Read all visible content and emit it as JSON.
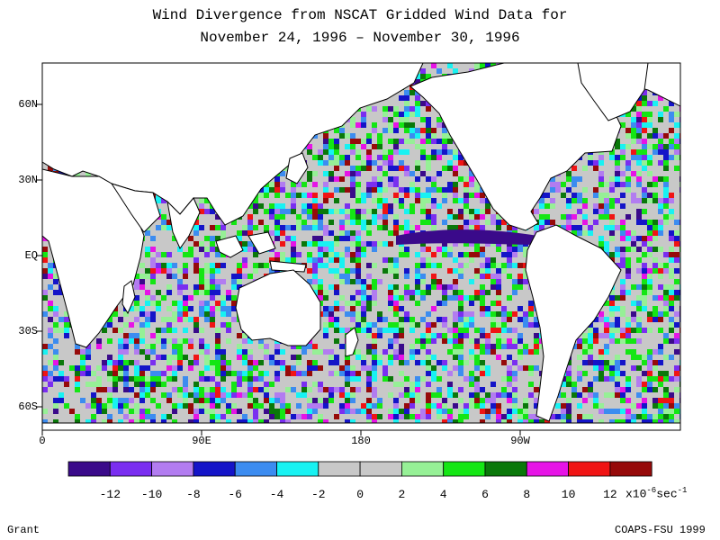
{
  "title": {
    "line1": "Wind Divergence from NSCAT Gridded Wind Data for",
    "line2": "November 24, 1996 – November 30, 1996"
  },
  "axes": {
    "y_labels": [
      "60N",
      "30N",
      "EQ",
      "30S",
      "60S"
    ],
    "x_labels": [
      "0",
      "90E",
      "180",
      "90W"
    ]
  },
  "colorbar": {
    "colors": [
      "#3a0a8a",
      "#7a2ef0",
      "#b27cf0",
      "#1414c8",
      "#3c8cf0",
      "#18f2f2",
      "#c8c8c8",
      "#c8c8c8",
      "#96f096",
      "#14e614",
      "#0a780a",
      "#e614e6",
      "#f01414",
      "#960a0a"
    ],
    "tick_labels": [
      "-12",
      "-10",
      "-8",
      "-6",
      "-4",
      "-2",
      "0",
      "2",
      "4",
      "6",
      "8",
      "10",
      "12"
    ],
    "unit_prefix": "x10",
    "unit_exp": "-6",
    "unit_mid": "sec",
    "unit_exp2": "-1"
  },
  "footer": {
    "left": "Grant",
    "right": "COAPS-FSU 1999"
  }
}
